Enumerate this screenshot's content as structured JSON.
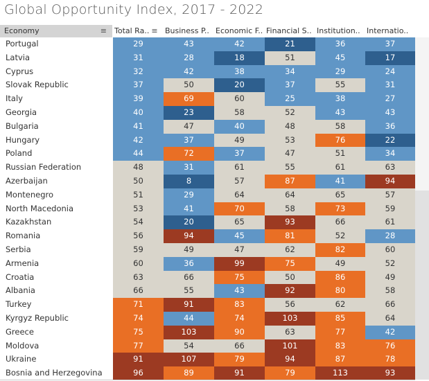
{
  "title": "Global Opportunity Index, 2017 - 2022",
  "header": {
    "economy_label": "Economy",
    "columns": [
      "Total Ra..",
      "Business P..",
      "Economic F..",
      "Financial S..",
      "Institution..",
      "Internatio.."
    ],
    "sort_icon": "sort-descending-icon"
  },
  "colors": {
    "dark_blue": "#2e5f8e",
    "light_blue": "#6096c6",
    "neutral": "#d9d5cb",
    "orange": "#e96f25",
    "dark_red": "#9c3a22",
    "text_light": "#ffffff",
    "text_dark": "#333333"
  },
  "rows": [
    {
      "economy": "Portugal",
      "values": [
        29,
        43,
        42,
        21,
        36,
        37
      ],
      "bins": [
        "lb",
        "lb",
        "lb",
        "db",
        "lb",
        "lb"
      ]
    },
    {
      "economy": "Latvia",
      "values": [
        31,
        28,
        18,
        51,
        45,
        17
      ],
      "bins": [
        "lb",
        "lb",
        "db",
        "n",
        "lb",
        "db"
      ]
    },
    {
      "economy": "Cyprus",
      "values": [
        32,
        42,
        38,
        34,
        29,
        24
      ],
      "bins": [
        "lb",
        "lb",
        "lb",
        "lb",
        "lb",
        "lb"
      ]
    },
    {
      "economy": "Slovak Republic",
      "values": [
        37,
        50,
        20,
        37,
        55,
        31
      ],
      "bins": [
        "lb",
        "n",
        "db",
        "lb",
        "n",
        "lb"
      ]
    },
    {
      "economy": "Italy",
      "values": [
        39,
        69,
        60,
        25,
        38,
        27
      ],
      "bins": [
        "lb",
        "o",
        "n",
        "lb",
        "lb",
        "lb"
      ]
    },
    {
      "economy": "Georgia",
      "values": [
        40,
        23,
        58,
        52,
        43,
        43
      ],
      "bins": [
        "lb",
        "db",
        "n",
        "n",
        "lb",
        "lb"
      ]
    },
    {
      "economy": "Bulgaria",
      "values": [
        41,
        47,
        40,
        48,
        58,
        36
      ],
      "bins": [
        "lb",
        "n",
        "lb",
        "n",
        "n",
        "lb"
      ]
    },
    {
      "economy": "Hungary",
      "values": [
        42,
        37,
        49,
        53,
        76,
        22
      ],
      "bins": [
        "lb",
        "lb",
        "n",
        "n",
        "o",
        "db"
      ]
    },
    {
      "economy": "Poland",
      "values": [
        44,
        72,
        37,
        47,
        51,
        34
      ],
      "bins": [
        "lb",
        "o",
        "lb",
        "n",
        "n",
        "lb"
      ]
    },
    {
      "economy": "Russian Federation",
      "values": [
        48,
        31,
        61,
        55,
        61,
        63
      ],
      "bins": [
        "n",
        "lb",
        "n",
        "n",
        "n",
        "n"
      ]
    },
    {
      "economy": "Azerbaijan",
      "values": [
        50,
        8,
        57,
        87,
        41,
        94
      ],
      "bins": [
        "n",
        "db",
        "n",
        "o",
        "lb",
        "dr"
      ]
    },
    {
      "economy": "Montenegro",
      "values": [
        51,
        29,
        64,
        64,
        65,
        57
      ],
      "bins": [
        "n",
        "lb",
        "n",
        "n",
        "n",
        "n"
      ]
    },
    {
      "economy": "North Macedonia",
      "values": [
        53,
        41,
        70,
        58,
        73,
        59
      ],
      "bins": [
        "n",
        "lb",
        "o",
        "n",
        "o",
        "n"
      ]
    },
    {
      "economy": "Kazakhstan",
      "values": [
        54,
        20,
        65,
        93,
        66,
        61
      ],
      "bins": [
        "n",
        "db",
        "n",
        "dr",
        "n",
        "n"
      ]
    },
    {
      "economy": "Romania",
      "values": [
        56,
        94,
        45,
        81,
        52,
        28
      ],
      "bins": [
        "n",
        "dr",
        "lb",
        "o",
        "n",
        "lb"
      ]
    },
    {
      "economy": "Serbia",
      "values": [
        59,
        49,
        47,
        62,
        82,
        60
      ],
      "bins": [
        "n",
        "n",
        "n",
        "n",
        "o",
        "n"
      ]
    },
    {
      "economy": "Armenia",
      "values": [
        60,
        36,
        99,
        75,
        49,
        52
      ],
      "bins": [
        "n",
        "lb",
        "dr",
        "o",
        "n",
        "n"
      ]
    },
    {
      "economy": "Croatia",
      "values": [
        63,
        66,
        75,
        50,
        86,
        49
      ],
      "bins": [
        "n",
        "n",
        "o",
        "n",
        "o",
        "n"
      ]
    },
    {
      "economy": "Albania",
      "values": [
        66,
        55,
        43,
        92,
        80,
        58
      ],
      "bins": [
        "n",
        "n",
        "lb",
        "dr",
        "o",
        "n"
      ]
    },
    {
      "economy": "Turkey",
      "values": [
        71,
        91,
        83,
        56,
        62,
        66
      ],
      "bins": [
        "o",
        "dr",
        "o",
        "n",
        "n",
        "n"
      ]
    },
    {
      "economy": "Kyrgyz Republic",
      "values": [
        74,
        44,
        74,
        103,
        85,
        64
      ],
      "bins": [
        "o",
        "lb",
        "o",
        "dr",
        "o",
        "n"
      ]
    },
    {
      "economy": "Greece",
      "values": [
        75,
        103,
        90,
        63,
        77,
        42
      ],
      "bins": [
        "o",
        "dr",
        "o",
        "n",
        "o",
        "lb"
      ]
    },
    {
      "economy": "Moldova",
      "values": [
        77,
        54,
        66,
        101,
        83,
        76
      ],
      "bins": [
        "o",
        "n",
        "n",
        "dr",
        "o",
        "o"
      ]
    },
    {
      "economy": "Ukraine",
      "values": [
        91,
        107,
        79,
        94,
        87,
        78
      ],
      "bins": [
        "dr",
        "dr",
        "o",
        "dr",
        "o",
        "o"
      ]
    },
    {
      "economy": "Bosnia and Herzegovina",
      "values": [
        96,
        89,
        91,
        79,
        113,
        93
      ],
      "bins": [
        "dr",
        "o",
        "dr",
        "o",
        "dr",
        "dr"
      ]
    }
  ]
}
